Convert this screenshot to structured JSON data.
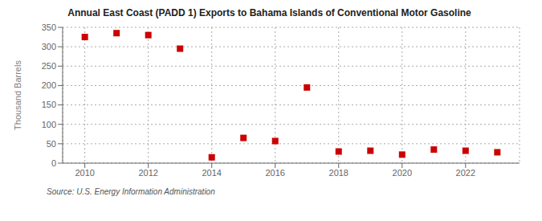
{
  "chart_data": {
    "type": "scatter",
    "title": "Annual East Coast (PADD 1) Exports to Bahama Islands of Conventional Motor Gasoline",
    "y_label": "Thousand Barrels",
    "annotation": "Source: U.S. Energy Information Administration",
    "x": [
      2010,
      2011,
      2012,
      2013,
      2014,
      2015,
      2016,
      2017,
      2018,
      2019,
      2020,
      2021,
      2022,
      2023
    ],
    "values": [
      325,
      335,
      330,
      295,
      15,
      65,
      57,
      195,
      30,
      32,
      22,
      35,
      32,
      28
    ],
    "color": "#cc0000",
    "marker": "square",
    "xlim": [
      2009.3,
      2023.7
    ],
    "ylim": [
      0,
      350
    ],
    "xticks": [
      2010,
      2012,
      2014,
      2016,
      2018,
      2020,
      2022
    ],
    "yticks": [
      0,
      50,
      100,
      150,
      200,
      250,
      300,
      350
    ],
    "grid": true
  }
}
